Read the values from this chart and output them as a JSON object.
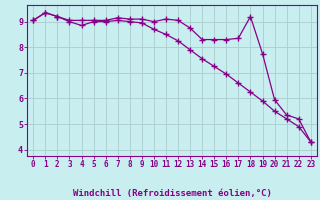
{
  "xlabel": "Windchill (Refroidissement éolien,°C)",
  "bg_color": "#c8eef0",
  "grid_color": "#aacccc",
  "line_color": "#880088",
  "xlim": [
    -0.5,
    23.5
  ],
  "ylim": [
    3.75,
    9.65
  ],
  "xticks": [
    0,
    1,
    2,
    3,
    4,
    5,
    6,
    7,
    8,
    9,
    10,
    11,
    12,
    13,
    14,
    15,
    16,
    17,
    18,
    19,
    20,
    21,
    22,
    23
  ],
  "yticks": [
    4,
    5,
    6,
    7,
    8,
    9
  ],
  "s1y": [
    9.05,
    9.35,
    9.2,
    9.05,
    9.05,
    9.05,
    9.05,
    9.15,
    9.1,
    9.1,
    9.0,
    9.1,
    9.05,
    8.75,
    8.3,
    8.3,
    8.3,
    8.35,
    9.2,
    7.75,
    5.95,
    5.35,
    5.2,
    4.3
  ],
  "s2y": [
    9.05,
    9.35,
    9.2,
    9.0,
    8.85,
    9.0,
    9.0,
    9.05,
    9.0,
    8.95,
    8.7,
    8.5,
    8.25,
    7.9,
    7.55,
    7.25,
    6.95,
    6.6,
    6.25,
    5.9,
    5.5,
    5.2,
    4.9,
    4.3
  ],
  "tick_fontsize": 5.5,
  "xlabel_fontsize": 6.5
}
